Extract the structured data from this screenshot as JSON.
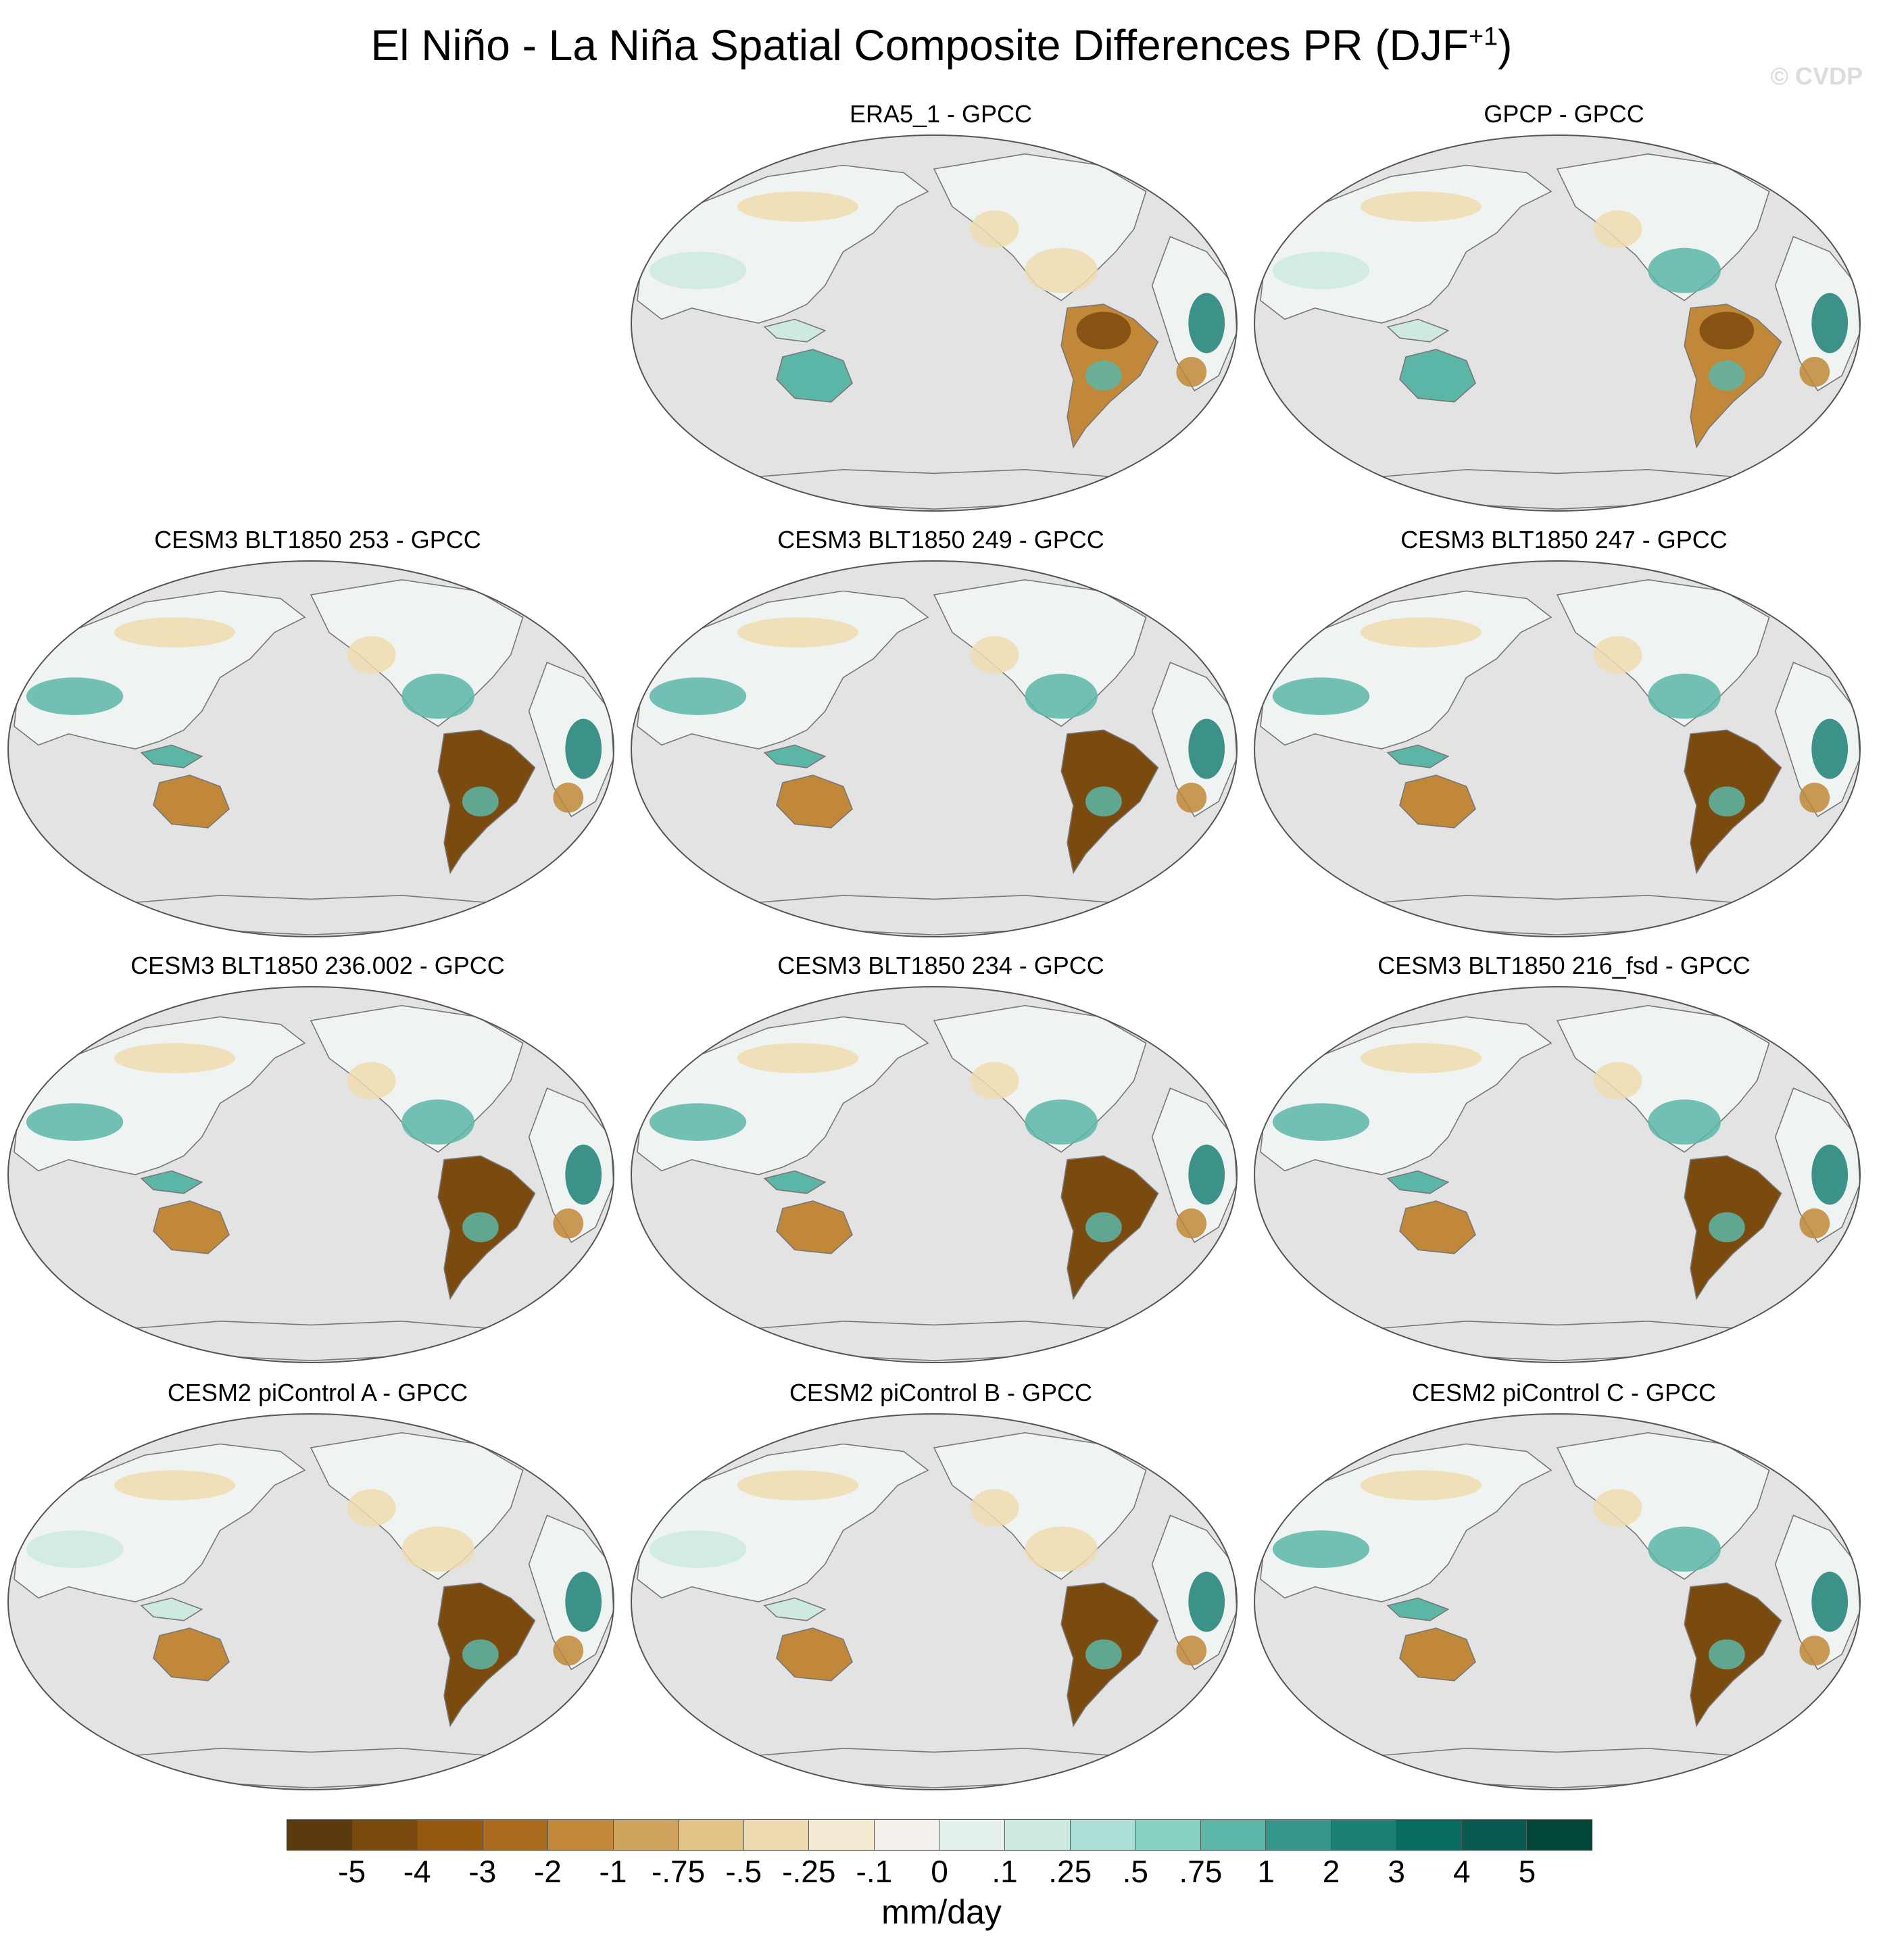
{
  "title": {
    "main": "El Niño - La Niña Spatial Composite Differences PR (DJF",
    "superscript": "+1",
    "close": ")"
  },
  "watermark": "© CVDP",
  "panels": [
    {
      "title": "ERA5_1 - GPCC",
      "row": 0,
      "col": 1,
      "na": "mix",
      "sa": "dry-north",
      "au": "wet-ne",
      "as": "light"
    },
    {
      "title": "GPCP - GPCC",
      "row": 0,
      "col": 2,
      "na": "wet",
      "sa": "dry",
      "au": "wet",
      "as": "light"
    },
    {
      "title": "CESM3 BLT1850 253 - GPCC",
      "row": 1,
      "col": 0,
      "na": "wet",
      "sa": "dry-strong",
      "au": "dry",
      "as": "wet"
    },
    {
      "title": "CESM3 BLT1850 249 - GPCC",
      "row": 1,
      "col": 1,
      "na": "wet",
      "sa": "dry-strong",
      "au": "dry",
      "as": "wet"
    },
    {
      "title": "CESM3 BLT1850 247 - GPCC",
      "row": 1,
      "col": 2,
      "na": "wet",
      "sa": "dry-strong",
      "au": "dry",
      "as": "wet"
    },
    {
      "title": "CESM3 BLT1850 236.002 - GPCC",
      "row": 2,
      "col": 0,
      "na": "wet",
      "sa": "dry-strong",
      "au": "dry",
      "as": "wet"
    },
    {
      "title": "CESM3 BLT1850 234 - GPCC",
      "row": 2,
      "col": 1,
      "na": "wet",
      "sa": "dry-strong",
      "au": "dry",
      "as": "wet"
    },
    {
      "title": "CESM3 BLT1850 216_fsd - GPCC",
      "row": 2,
      "col": 2,
      "na": "wet",
      "sa": "dry-strong",
      "au": "dry",
      "as": "wet"
    },
    {
      "title": "CESM2 piControl A - GPCC",
      "row": 3,
      "col": 0,
      "na": "mix",
      "sa": "dry-strong",
      "au": "dry",
      "as": "light"
    },
    {
      "title": "CESM2 piControl B - GPCC",
      "row": 3,
      "col": 1,
      "na": "mix",
      "sa": "dry-strong",
      "au": "dry",
      "as": "light"
    },
    {
      "title": "CESM2 piControl C - GPCC",
      "row": 3,
      "col": 2,
      "na": "wet",
      "sa": "dry-strong",
      "au": "dry",
      "as": "wet"
    }
  ],
  "colorbar": {
    "colors": [
      "#5b3a10",
      "#7b4a0f",
      "#96580f",
      "#ab6b1c",
      "#c08838",
      "#d1a45e",
      "#e2c487",
      "#eedcb0",
      "#f4ead2",
      "#f4f1ec",
      "#e4f1ee",
      "#cde9e2",
      "#acdfd5",
      "#88d1c3",
      "#5cb6a8",
      "#35978c",
      "#1c8077",
      "#076c62",
      "#075a4f",
      "#03463a"
    ],
    "labels": [
      "-5",
      "-4",
      "-3",
      "-2",
      "-1",
      "-.75",
      "-.5",
      "-.25",
      "-.1",
      "0",
      ".1",
      ".25",
      ".5",
      ".75",
      "1",
      "2",
      "3",
      "4",
      "5"
    ],
    "units": "mm/day"
  },
  "colors": {
    "ocean": "#e3e3e3",
    "land_neutral": "#eff3f1",
    "dry_strong": "#7b4a0f",
    "dry": "#c08838",
    "dry_light": "#eedcb0",
    "wet_light": "#cde9e2",
    "wet": "#5cb6a8",
    "wet_strong": "#1c8077",
    "coast": "#777777"
  }
}
